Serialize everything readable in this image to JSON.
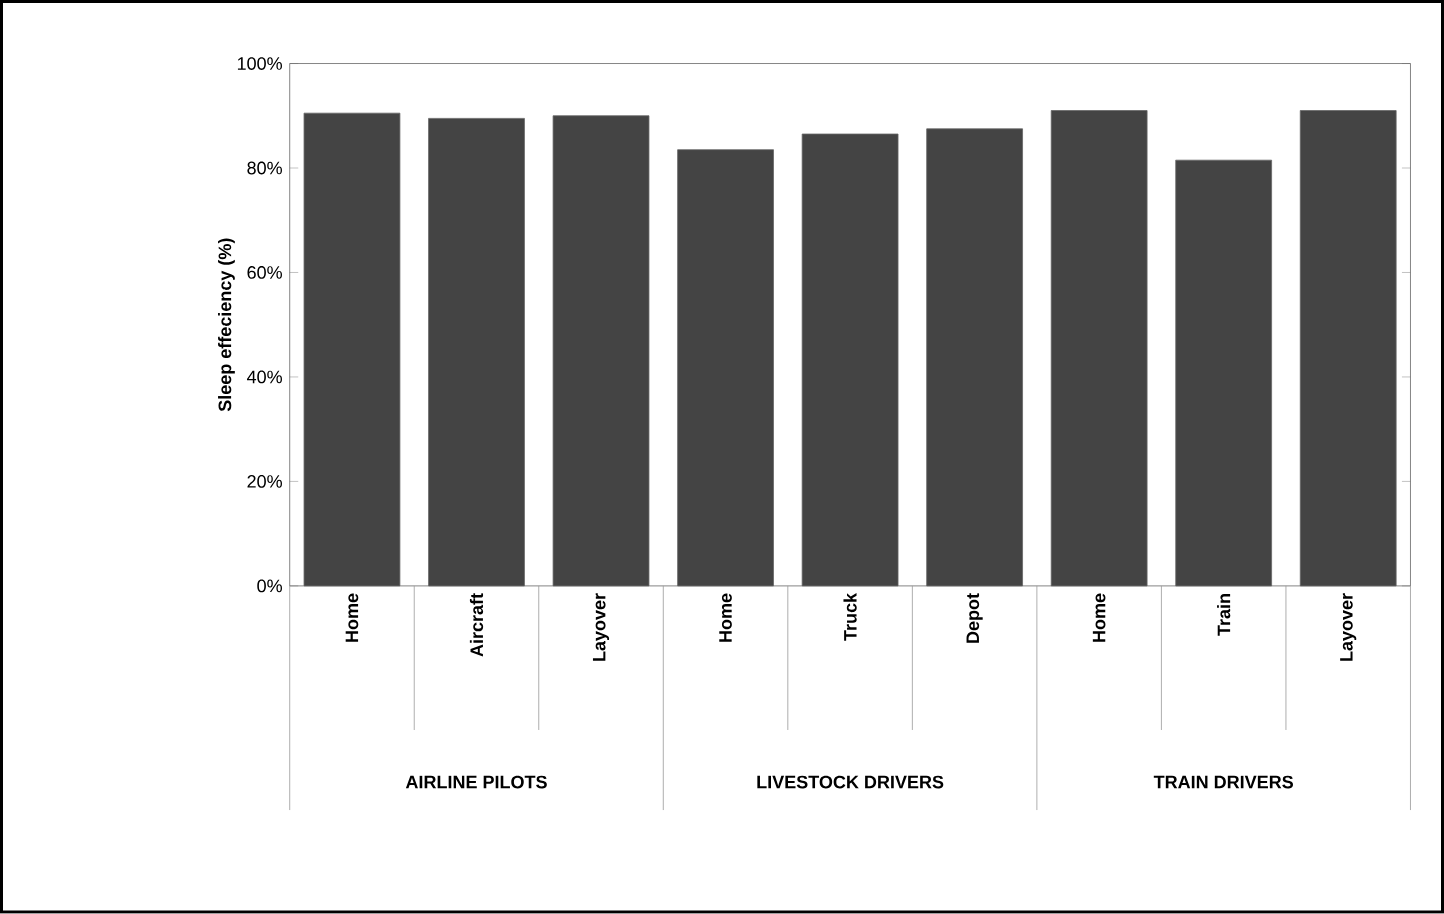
{
  "chart_data": {
    "type": "bar",
    "ylabel": "Sleep effeciency (%)",
    "categories": [
      "Home",
      "Aircraft",
      "Layover",
      "Home",
      "Truck",
      "Depot",
      "Home",
      "Train",
      "Layover"
    ],
    "values": [
      90.5,
      89.5,
      90,
      83.5,
      86.5,
      87.5,
      91,
      81.5,
      91
    ],
    "color": "#444444",
    "ylim": [
      0,
      100
    ],
    "yticks": [
      {
        "value": 0,
        "label": "0%"
      },
      {
        "value": 20,
        "label": "20%"
      },
      {
        "value": 40,
        "label": "40%"
      },
      {
        "value": 60,
        "label": "60%"
      },
      {
        "value": 80,
        "label": "80%"
      },
      {
        "value": 100,
        "label": "100%"
      }
    ],
    "annotations": [
      "AIRLINE PILOTS",
      "LIVESTOCK DRIVERS",
      "TRAIN DRIVERS"
    ]
  }
}
